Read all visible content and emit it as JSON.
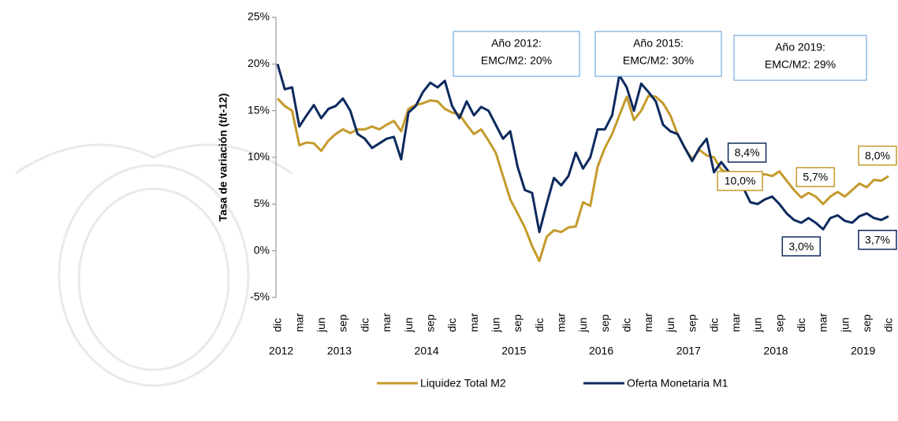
{
  "chart_data": {
    "type": "line",
    "y_label": "Tasa de variación (t/t-12)",
    "categories": [
      "dic",
      null,
      null,
      "mar",
      null,
      null,
      "jun",
      null,
      null,
      "sep",
      null,
      null,
      "dic",
      null,
      null,
      "mar",
      null,
      null,
      "jun",
      null,
      null,
      "sep",
      null,
      null,
      "dic",
      null,
      null,
      "mar",
      null,
      null,
      "jun",
      null,
      null,
      "sep",
      null,
      null,
      "dic",
      null,
      null,
      "mar",
      null,
      null,
      "jun",
      null,
      null,
      "sep",
      null,
      null,
      "dic",
      null,
      null,
      "mar",
      null,
      null,
      "jun",
      null,
      null,
      "sep",
      null,
      null,
      "dic",
      null,
      null,
      "mar",
      null,
      null,
      "jun",
      null,
      null,
      "sep",
      null,
      null,
      "dic",
      null,
      null,
      "mar",
      null,
      null,
      "jun",
      null,
      null,
      "sep",
      null,
      null,
      "dic"
    ],
    "years": [
      "2012",
      "2013",
      "2014",
      "2015",
      "2016",
      "2017",
      "2018",
      "2019"
    ],
    "series": [
      {
        "name": "Liquidez Total M2",
        "color": "#c49a2c",
        "values": [
          16.3,
          15.5,
          15.0,
          11.3,
          11.6,
          11.5,
          10.7,
          11.8,
          12.5,
          13.0,
          12.6,
          13.0,
          13.0,
          13.3,
          13.0,
          13.5,
          13.9,
          12.8,
          15.2,
          15.6,
          15.8,
          16.1,
          16.0,
          15.2,
          14.8,
          14.6,
          13.5,
          12.5,
          13.0,
          11.8,
          10.5,
          8.0,
          5.5,
          4.0,
          2.5,
          0.5,
          -1.1,
          1.5,
          2.2,
          2.0,
          2.5,
          2.6,
          5.2,
          4.8,
          9.0,
          11.0,
          12.5,
          14.5,
          16.5,
          14.0,
          15.0,
          16.6,
          16.5,
          15.8,
          14.5,
          12.5,
          11.0,
          9.8,
          10.8,
          10.2,
          10.0,
          8.7,
          8.3,
          7.8,
          7.9,
          7.6,
          8.0,
          8.2,
          8.0,
          8.5,
          7.5,
          6.5,
          5.7,
          6.2,
          5.8,
          5.0,
          5.8,
          6.3,
          5.8,
          6.5,
          7.2,
          6.8,
          7.6,
          7.5,
          8.0
        ],
        "value_labels": [
          null,
          null,
          null,
          null,
          null,
          null,
          null,
          null,
          null,
          null,
          null,
          null,
          null,
          null,
          null,
          null,
          null,
          null,
          null,
          null,
          null,
          null,
          null,
          null,
          null,
          null,
          null,
          null,
          null,
          null,
          null,
          null,
          null,
          null,
          null,
          null,
          null,
          null,
          null,
          null,
          null,
          null,
          null,
          null,
          null,
          null,
          null,
          null,
          null,
          null,
          null,
          null,
          null,
          null,
          null,
          null,
          null,
          null,
          null,
          null,
          "10,0%",
          null,
          null,
          null,
          null,
          null,
          null,
          null,
          null,
          null,
          null,
          null,
          "5,7%",
          null,
          null,
          null,
          null,
          null,
          null,
          null,
          null,
          null,
          null,
          null,
          "8,0%"
        ]
      },
      {
        "name": "Oferta Monetaria M1",
        "color": "#0d2a5e",
        "values": [
          20.0,
          17.3,
          17.5,
          13.3,
          14.5,
          15.6,
          14.2,
          15.2,
          15.5,
          16.3,
          15.0,
          12.5,
          12.0,
          11.0,
          11.5,
          12.0,
          12.2,
          9.8,
          14.8,
          15.5,
          17.0,
          18.0,
          17.5,
          18.2,
          15.5,
          14.2,
          16.0,
          14.5,
          15.4,
          15.0,
          13.5,
          12.0,
          12.8,
          9.0,
          6.5,
          6.2,
          2.0,
          5.0,
          7.8,
          7.0,
          8.0,
          10.5,
          8.8,
          10.0,
          13.0,
          13.0,
          14.5,
          18.8,
          17.5,
          15.0,
          17.9,
          17.0,
          16.0,
          13.5,
          12.8,
          12.5,
          11.0,
          9.6,
          11.0,
          12.0,
          8.4,
          9.5,
          8.5,
          7.0,
          6.8,
          5.2,
          5.0,
          5.5,
          5.8,
          5.0,
          4.0,
          3.3,
          3.0,
          3.5,
          3.0,
          2.3,
          3.5,
          3.8,
          3.2,
          3.0,
          3.7,
          4.0,
          3.5,
          3.3,
          3.7
        ],
        "value_labels": [
          null,
          null,
          null,
          null,
          null,
          null,
          null,
          null,
          null,
          null,
          null,
          null,
          null,
          null,
          null,
          null,
          null,
          null,
          null,
          null,
          null,
          null,
          null,
          null,
          null,
          null,
          null,
          null,
          null,
          null,
          null,
          null,
          null,
          null,
          null,
          null,
          null,
          null,
          null,
          null,
          null,
          null,
          null,
          null,
          null,
          null,
          null,
          null,
          null,
          null,
          null,
          null,
          null,
          null,
          null,
          null,
          null,
          null,
          null,
          null,
          "8,4%",
          null,
          null,
          null,
          null,
          null,
          null,
          null,
          null,
          null,
          null,
          null,
          "3,0%",
          null,
          null,
          null,
          null,
          null,
          null,
          null,
          null,
          null,
          null,
          null,
          "3,7%"
        ]
      }
    ],
    "ylim": [
      -5,
      25
    ],
    "yticks": [
      {
        "value": -5,
        "label": "-5%"
      },
      {
        "value": 0,
        "label": "0%"
      },
      {
        "value": 5,
        "label": "5%"
      },
      {
        "value": 10,
        "label": "10%"
      },
      {
        "value": 15,
        "label": "15%"
      },
      {
        "value": 20,
        "label": "20%"
      },
      {
        "value": 25,
        "label": "25%"
      }
    ],
    "annotations": [
      [
        "Año 2012:",
        "EMC/M2: 20%"
      ],
      [
        "Año 2015:",
        "EMC/M2: 30%"
      ],
      [
        "Año 2019:",
        "EMC/M2: 29%"
      ]
    ],
    "legend": "bottom"
  }
}
